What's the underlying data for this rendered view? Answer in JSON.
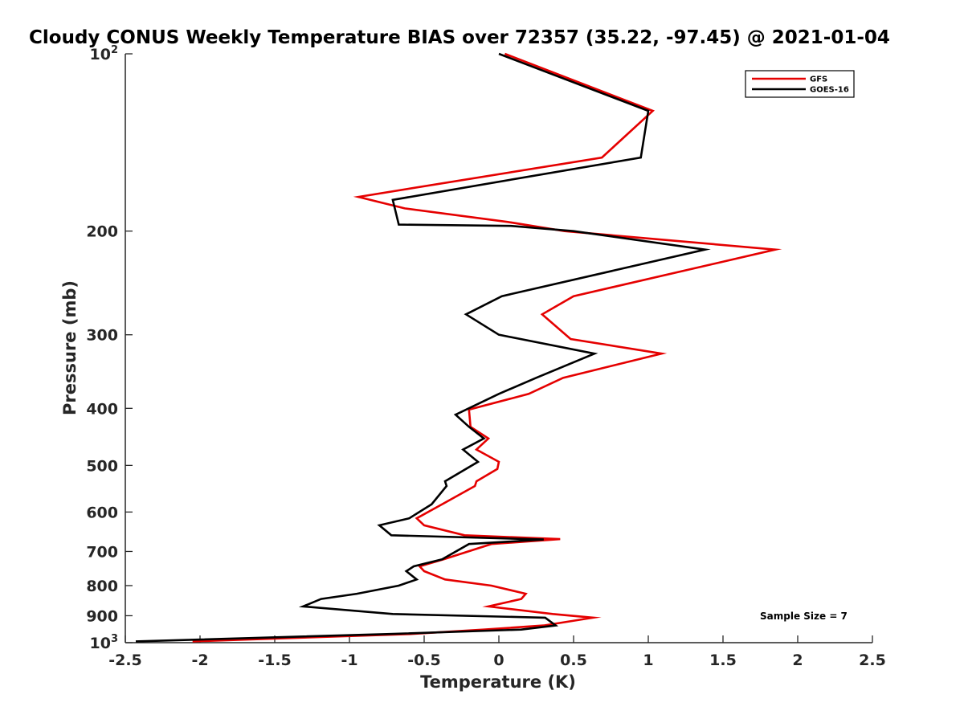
{
  "chart_data": {
    "type": "line",
    "title": "Cloudy CONUS Weekly Temperature BIAS over 72357 (35.22, -97.45) @ 2021-01-04",
    "xlabel": "Temperature (K)",
    "ylabel": "Pressure (mb)",
    "xlim": [
      -2.5,
      2.5
    ],
    "ylim": [
      100,
      1000
    ],
    "yscale": "log",
    "y_reversed": true,
    "grid": false,
    "legend_position": "top-right",
    "x_ticks": [
      -2.5,
      -2,
      -1.5,
      -1,
      -0.5,
      0,
      0.5,
      1,
      1.5,
      2,
      2.5
    ],
    "x_tick_labels": [
      "-2.5",
      "-2",
      "-1.5",
      "-1",
      "-0.5",
      "0",
      "0.5",
      "1",
      "1.5",
      "2",
      "2.5"
    ],
    "y_ticks": [
      100,
      200,
      300,
      400,
      500,
      600,
      700,
      800,
      900,
      1000
    ],
    "y_tick_labels": [
      {
        "base": "10",
        "exp": "2"
      },
      {
        "base": "200",
        "exp": ""
      },
      {
        "base": "300",
        "exp": ""
      },
      {
        "base": "400",
        "exp": ""
      },
      {
        "base": "500",
        "exp": ""
      },
      {
        "base": "600",
        "exp": ""
      },
      {
        "base": "700",
        "exp": ""
      },
      {
        "base": "800",
        "exp": ""
      },
      {
        "base": "900",
        "exp": ""
      },
      {
        "base": "10",
        "exp": "3"
      }
    ],
    "annotation": "Sample Size = 7",
    "series": [
      {
        "name": "GFS",
        "color": "#e50000",
        "points": [
          [
            0.04,
            100
          ],
          [
            1.03,
            125
          ],
          [
            0.69,
            150
          ],
          [
            -0.94,
            175
          ],
          [
            -0.63,
            183
          ],
          [
            0.06,
            193
          ],
          [
            0.44,
            200
          ],
          [
            1.85,
            215
          ],
          [
            0.5,
            258
          ],
          [
            0.29,
            277
          ],
          [
            0.48,
            305
          ],
          [
            1.09,
            323
          ],
          [
            0.43,
            355
          ],
          [
            0.2,
            378
          ],
          [
            -0.2,
            402
          ],
          [
            -0.19,
            430
          ],
          [
            -0.07,
            450
          ],
          [
            -0.15,
            470
          ],
          [
            0.0,
            493
          ],
          [
            -0.01,
            507
          ],
          [
            -0.15,
            532
          ],
          [
            -0.16,
            542
          ],
          [
            -0.38,
            582
          ],
          [
            -0.55,
            615
          ],
          [
            -0.5,
            632
          ],
          [
            -0.23,
            657
          ],
          [
            0.41,
            667
          ],
          [
            -0.05,
            680
          ],
          [
            -0.37,
            722
          ],
          [
            -0.53,
            742
          ],
          [
            -0.5,
            756
          ],
          [
            -0.36,
            781
          ],
          [
            -0.05,
            800
          ],
          [
            0.18,
            826
          ],
          [
            0.15,
            843
          ],
          [
            -0.07,
            868
          ],
          [
            0.36,
            894
          ],
          [
            0.63,
            907
          ],
          [
            0.3,
            935
          ],
          [
            -0.1,
            950
          ],
          [
            -0.6,
            967
          ],
          [
            -2.05,
            995
          ]
        ]
      },
      {
        "name": "GOES-16",
        "color": "#000000",
        "points": [
          [
            0.0,
            100
          ],
          [
            1.0,
            125
          ],
          [
            0.95,
            150
          ],
          [
            -0.71,
            177
          ],
          [
            -0.67,
            195
          ],
          [
            0.08,
            196
          ],
          [
            0.5,
            200
          ],
          [
            1.38,
            215
          ],
          [
            0.02,
            258
          ],
          [
            -0.22,
            277
          ],
          [
            0.0,
            300
          ],
          [
            0.64,
            323
          ],
          [
            0.25,
            355
          ],
          [
            0.0,
            378
          ],
          [
            -0.29,
            410
          ],
          [
            -0.2,
            430
          ],
          [
            -0.1,
            450
          ],
          [
            -0.24,
            470
          ],
          [
            -0.14,
            493
          ],
          [
            -0.36,
            532
          ],
          [
            -0.35,
            542
          ],
          [
            -0.45,
            582
          ],
          [
            -0.6,
            615
          ],
          [
            -0.8,
            632
          ],
          [
            -0.72,
            657
          ],
          [
            0.3,
            668
          ],
          [
            -0.2,
            680
          ],
          [
            -0.38,
            722
          ],
          [
            -0.57,
            742
          ],
          [
            -0.62,
            756
          ],
          [
            -0.55,
            781
          ],
          [
            -0.67,
            800
          ],
          [
            -0.95,
            826
          ],
          [
            -1.19,
            843
          ],
          [
            -1.31,
            868
          ],
          [
            -0.71,
            894
          ],
          [
            0.31,
            907
          ],
          [
            0.38,
            935
          ],
          [
            0.15,
            950
          ],
          [
            -0.75,
            967
          ],
          [
            -2.43,
            995
          ]
        ]
      }
    ]
  }
}
